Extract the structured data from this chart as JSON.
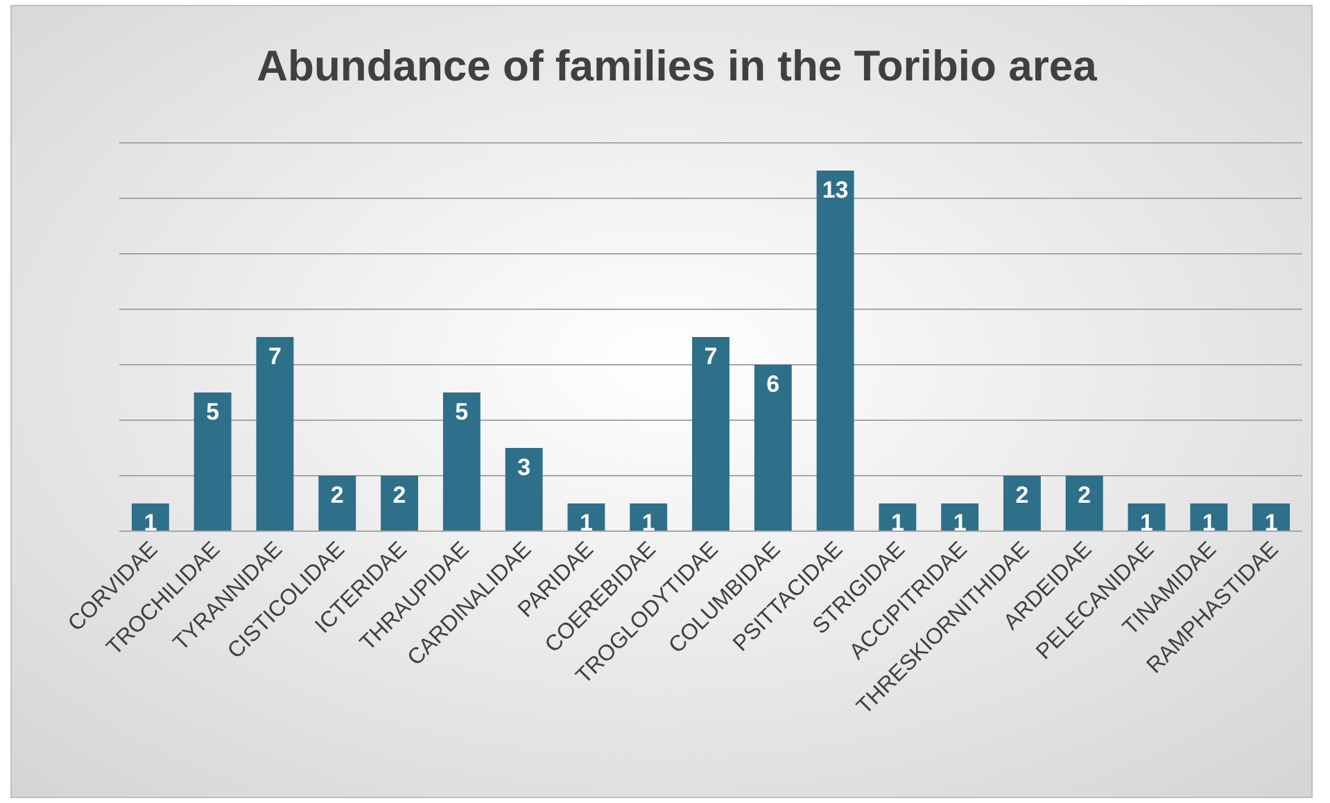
{
  "chart_data": {
    "type": "bar",
    "title": "Abundance of families in the Toribio area",
    "categories": [
      "CORVIDAE",
      "TROCHILIDAE",
      "TYRANNIDAE",
      "CISTICOLIDAE",
      "ICTERIDAE",
      "THRAUPIDAE",
      "CARDINALIDAE",
      "PARIDAE",
      "COEREBIDAE",
      "TROGLODYTIDAE",
      "COLUMBIDAE",
      "PSITTACIDAE",
      "STRIGIDAE",
      "ACCIPITRIDAE",
      "THRESKIORNITHIDAE",
      "ARDEIDAE",
      "PELECANIDAE",
      "TINAMIDAE",
      "RAMPHASTIDAE"
    ],
    "values": [
      1,
      5,
      7,
      2,
      2,
      5,
      3,
      1,
      1,
      7,
      6,
      13,
      1,
      1,
      2,
      2,
      1,
      1,
      1
    ],
    "color": "#2e6f8a",
    "ylim": [
      0,
      14
    ],
    "yticks": [
      {
        "value": 0,
        "label": null
      },
      {
        "value": 2,
        "label": null
      },
      {
        "value": 4,
        "label": null
      },
      {
        "value": 6,
        "label": null
      },
      {
        "value": 8,
        "label": null
      },
      {
        "value": 10,
        "label": null
      },
      {
        "value": 12,
        "label": null
      },
      {
        "value": 14,
        "label": null
      }
    ],
    "tick_labels": "x",
    "grid": "y",
    "data_labels": true
  }
}
